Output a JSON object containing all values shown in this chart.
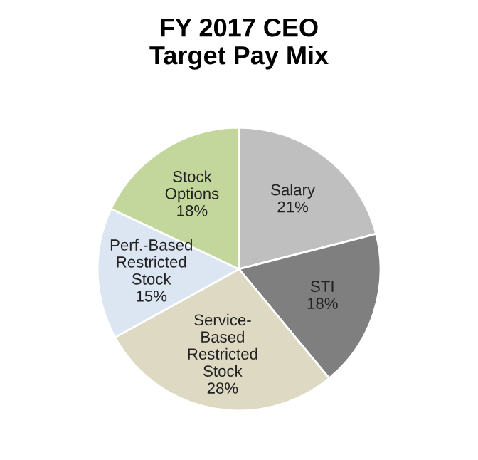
{
  "chart_data": {
    "type": "pie",
    "title": "FY 2017 CEO\nTarget Pay Mix",
    "categories": [
      "Salary",
      "STI",
      "Service-\nBased\nRestricted\nStock",
      "Perf.-Based\nRestricted\nStock",
      "Stock\nOptions"
    ],
    "values": [
      21,
      18,
      28,
      15,
      18
    ],
    "value_labels": [
      "21%",
      "18%",
      "28%",
      "15%",
      "18%"
    ],
    "colors": [
      "#bfbfbf",
      "#7f7f7f",
      "#ddd9c3",
      "#dce6f2",
      "#c3d69b"
    ],
    "legend": false
  }
}
